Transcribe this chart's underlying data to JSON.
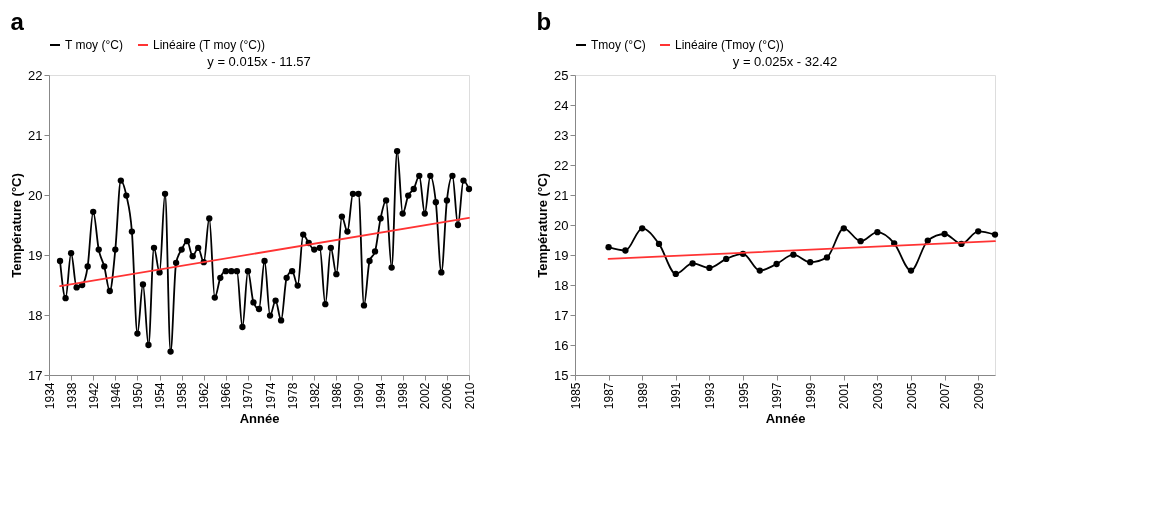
{
  "chart_data": [
    {
      "type": "line",
      "title": "a",
      "xlabel": "Année",
      "ylabel": "Température (°C)",
      "annotations": [
        "y = 0.015x - 11.57"
      ],
      "legend": "top",
      "grid": false,
      "xlim": [
        1934,
        2010
      ],
      "xticks": [
        1934,
        1938,
        1942,
        1946,
        1950,
        1954,
        1958,
        1962,
        1966,
        1970,
        1974,
        1978,
        1982,
        1986,
        1990,
        1994,
        1998,
        2002,
        2006,
        2010
      ],
      "ylim": [
        17,
        22
      ],
      "yticks": [
        17,
        18,
        19,
        20,
        21,
        22
      ],
      "series": [
        {
          "name": "T moy (°C)",
          "color": "#000000",
          "marker": "circle",
          "x": [
            1936,
            1937,
            1938,
            1939,
            1940,
            1941,
            1942,
            1943,
            1944,
            1945,
            1946,
            1947,
            1948,
            1949,
            1950,
            1951,
            1952,
            1953,
            1954,
            1955,
            1956,
            1957,
            1958,
            1959,
            1960,
            1961,
            1962,
            1963,
            1964,
            1965,
            1966,
            1967,
            1968,
            1969,
            1970,
            1971,
            1972,
            1973,
            1974,
            1975,
            1976,
            1977,
            1978,
            1979,
            1980,
            1981,
            1982,
            1983,
            1984,
            1985,
            1986,
            1987,
            1988,
            1989,
            1990,
            1991,
            1992,
            1993,
            1994,
            1995,
            1996,
            1997,
            1998,
            1999,
            2000,
            2001,
            2002,
            2003,
            2004,
            2005,
            2006,
            2007,
            2008,
            2009,
            2010
          ],
          "values": [
            18.9,
            18.28,
            19.03,
            18.46,
            18.5,
            18.81,
            19.72,
            19.09,
            18.81,
            18.4,
            19.09,
            20.24,
            19.99,
            19.39,
            17.69,
            18.51,
            17.5,
            19.12,
            18.71,
            20.02,
            17.39,
            18.87,
            19.09,
            19.23,
            18.98,
            19.12,
            18.88,
            19.61,
            18.29,
            18.62,
            18.73,
            18.73,
            18.73,
            17.8,
            18.73,
            18.21,
            18.1,
            18.9,
            17.99,
            18.24,
            17.91,
            18.62,
            18.73,
            18.49,
            19.34,
            19.2,
            19.09,
            19.12,
            18.18,
            19.12,
            18.68,
            19.64,
            19.39,
            20.02,
            20.02,
            18.16,
            18.9,
            19.06,
            19.61,
            19.91,
            18.79,
            20.73,
            19.69,
            19.99,
            20.1,
            20.32,
            19.69,
            20.32,
            19.88,
            18.71,
            19.91,
            20.32,
            19.5,
            20.24,
            20.1
          ]
        },
        {
          "name": "Linéaire (T moy (°C))",
          "color": "#ff3333",
          "marker": "none",
          "x": [
            1936,
            2010
          ],
          "values": [
            18.48,
            19.62
          ]
        }
      ]
    },
    {
      "type": "line",
      "title": "b",
      "xlabel": "Année",
      "ylabel": "Température (°C)",
      "annotations": [
        "y = 0.025x - 32.42"
      ],
      "legend": "top",
      "grid": false,
      "xlim": [
        1985,
        2010
      ],
      "xticks": [
        1985,
        1987,
        1989,
        1991,
        1993,
        1995,
        1997,
        1999,
        2001,
        2003,
        2005,
        2007,
        2009
      ],
      "ylim": [
        15,
        25
      ],
      "yticks": [
        15,
        16,
        17,
        18,
        19,
        20,
        21,
        22,
        23,
        24,
        25
      ],
      "series": [
        {
          "name": "Tmoy (°C)",
          "color": "#000000",
          "marker": "circle",
          "x": [
            1987,
            1988,
            1989,
            1990,
            1991,
            1992,
            1993,
            1994,
            1995,
            1996,
            1997,
            1998,
            1999,
            2000,
            2001,
            2002,
            2003,
            2004,
            2005,
            2006,
            2007,
            2008,
            2009,
            2010
          ],
          "values": [
            19.26,
            19.15,
            19.89,
            19.37,
            18.37,
            18.72,
            18.57,
            18.87,
            19.04,
            18.48,
            18.7,
            19.01,
            18.76,
            18.92,
            19.89,
            19.46,
            19.76,
            19.39,
            18.48,
            19.48,
            19.7,
            19.37,
            19.79,
            19.68
          ]
        },
        {
          "name": "Linéaire (Tmoy (°C))",
          "color": "#ff3333",
          "marker": "none",
          "x": [
            1987,
            2010
          ],
          "values": [
            18.87,
            19.46
          ]
        }
      ]
    }
  ]
}
